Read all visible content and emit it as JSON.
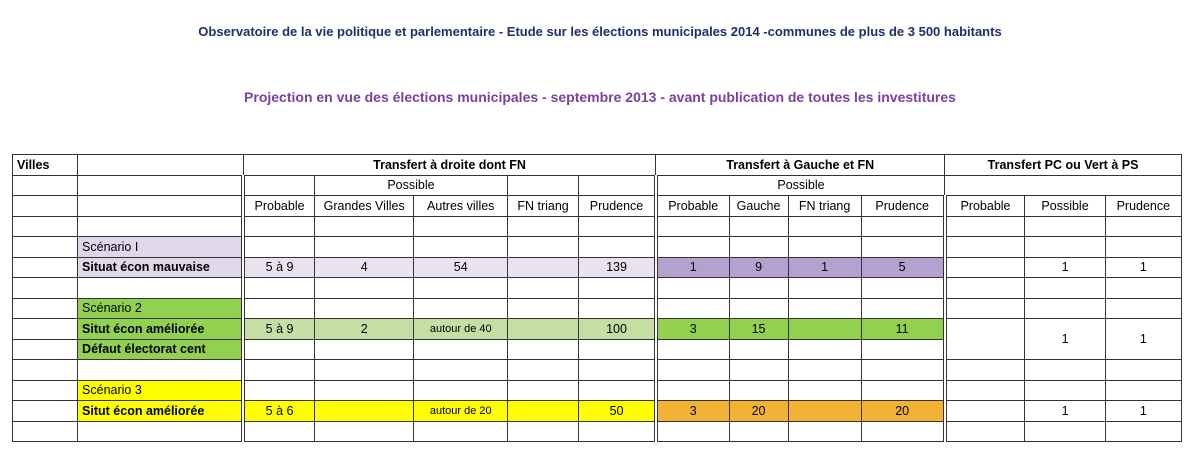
{
  "title": "Observatoire de la vie politique et parlementaire - Etude sur les élections municipales 2014 -communes de plus de 3 500 habitants",
  "subtitle": "Projection en vue des élections municipales - septembre 2013 - avant publication de toutes les investitures",
  "header": {
    "villes": "Villes",
    "group_droite": "Transfert à droite dont FN",
    "group_gauche": "Transfert à Gauche et FN",
    "group_pc": "Transfert PC ou Vert à PS",
    "possible": "Possible",
    "cols": {
      "probable": "Probable",
      "grandes_villes": "Grandes Villes",
      "autres_villes": "Autres villes",
      "fn_triang": "FN triang",
      "prudence": "Prudence",
      "gauche": "Gauche",
      "possible": "Possible"
    }
  },
  "scenarios": [
    {
      "name": "Scénario I",
      "label": "Situat écon mauvaise",
      "label2": "",
      "droite": {
        "probable": "5 à 9",
        "grandes_villes": "4",
        "autres_villes": "54",
        "fn_triang": "",
        "prudence": "139"
      },
      "gauche": {
        "probable": "1",
        "gauche": "9",
        "fn_triang": "1",
        "prudence": "5"
      },
      "pc": {
        "probable": "",
        "possible": "1",
        "prudence": "1"
      }
    },
    {
      "name": "Scénario 2",
      "label": "Situt écon améliorée",
      "label2": "Défaut électorat cent",
      "droite": {
        "probable": "5 à 9",
        "grandes_villes": "2",
        "autres_villes": "autour de 40",
        "fn_triang": "",
        "prudence": "100"
      },
      "gauche": {
        "probable": "3",
        "gauche": "15",
        "fn_triang": "",
        "prudence": "11"
      },
      "pc": {
        "probable": "",
        "possible": "1",
        "prudence": "1"
      }
    },
    {
      "name": "Scénario 3",
      "label": "Situt écon améliorée",
      "label2": "",
      "droite": {
        "probable": "5 à 6",
        "grandes_villes": "",
        "autres_villes": "autour de 20",
        "fn_triang": "",
        "prudence": "50"
      },
      "gauche": {
        "probable": "3",
        "gauche": "20",
        "fn_triang": "",
        "prudence": "20"
      },
      "pc": {
        "probable": "",
        "possible": "1",
        "prudence": "1"
      }
    }
  ]
}
